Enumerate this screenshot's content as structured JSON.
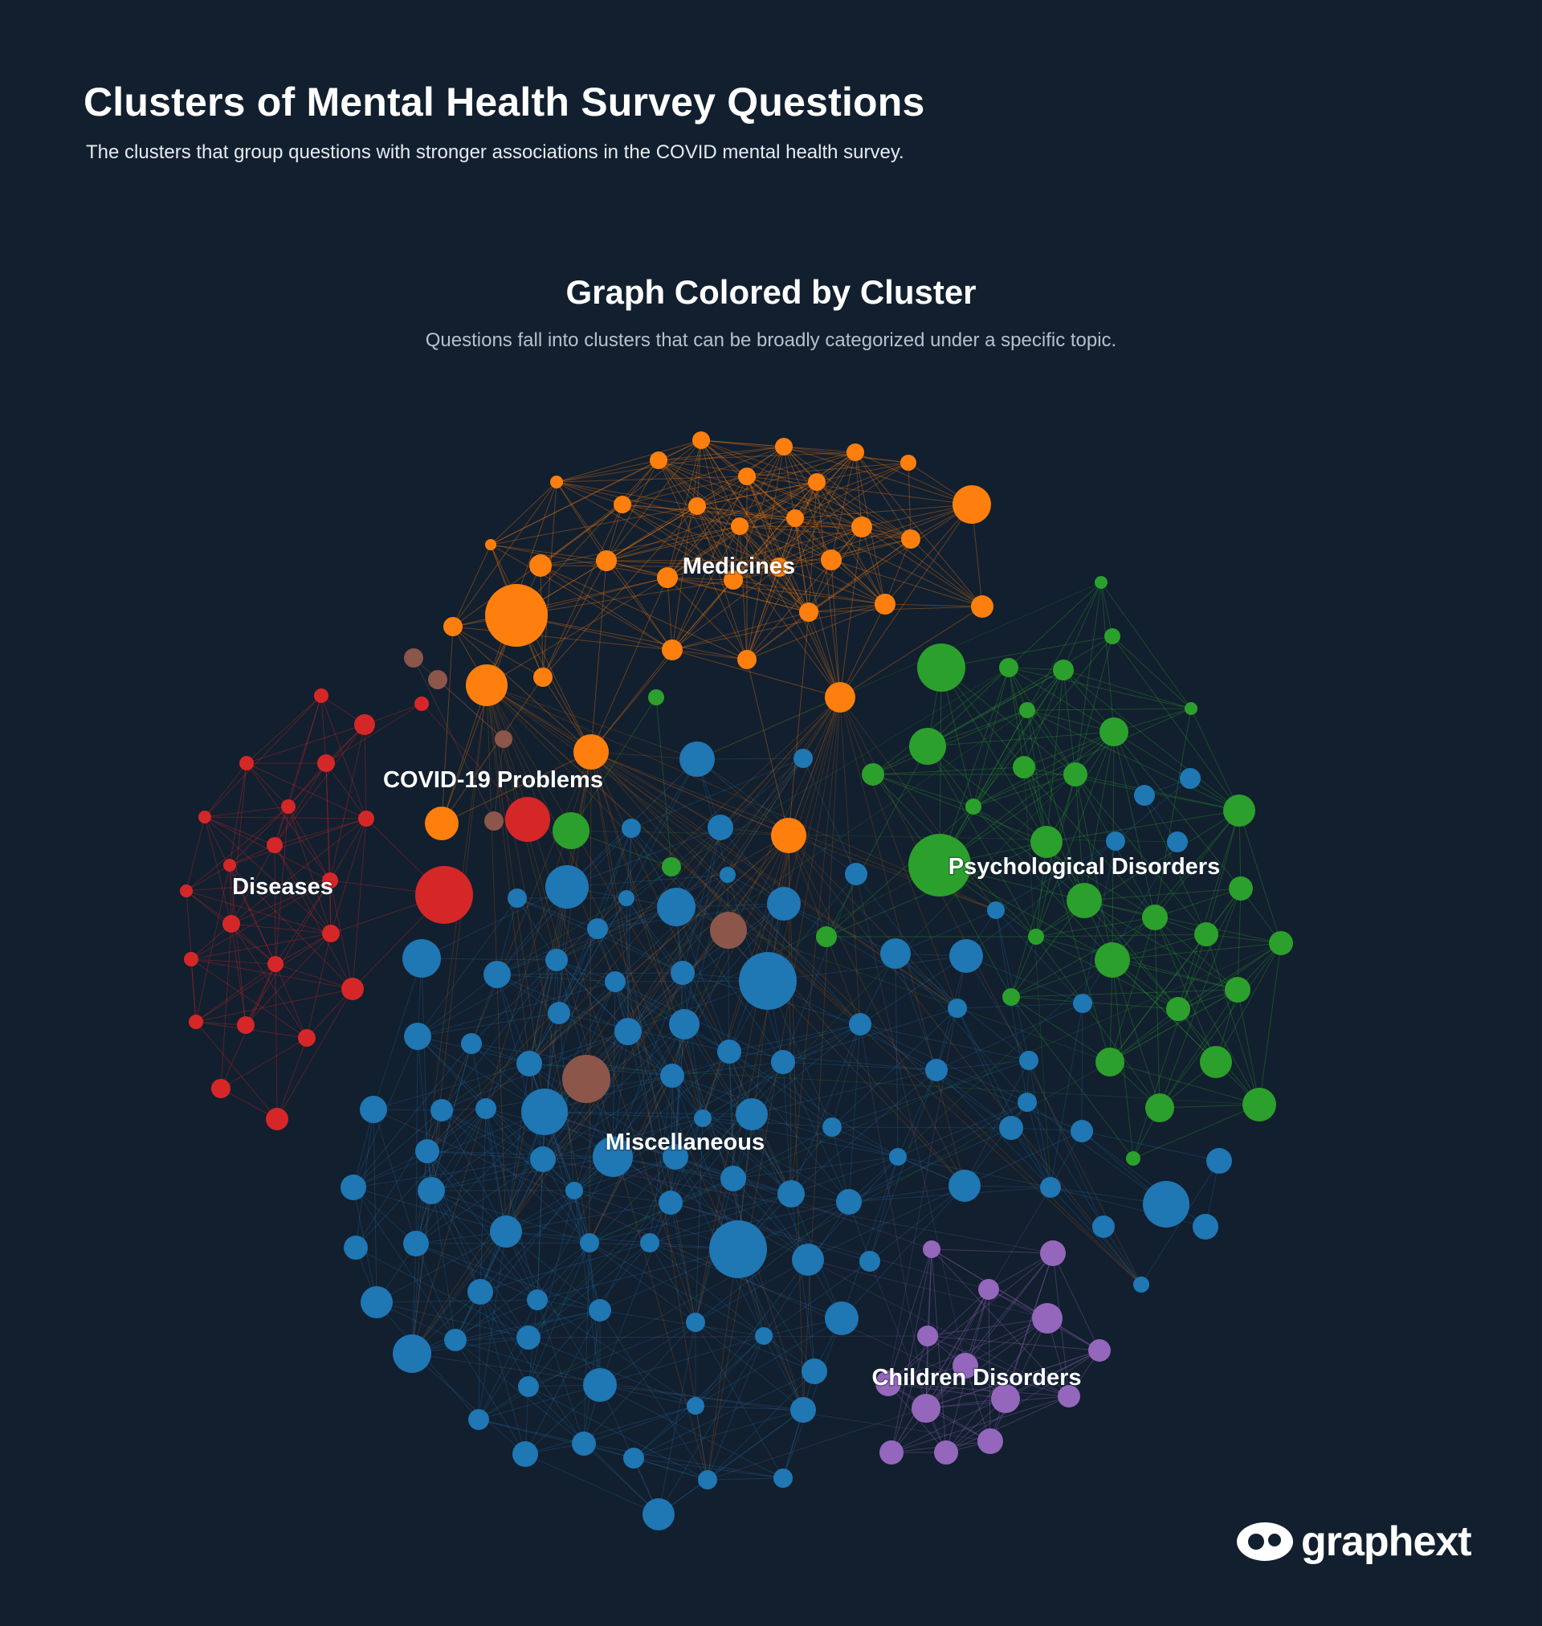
{
  "header": {
    "title": "Clusters of Mental Health Survey Questions",
    "subtitle": "The clusters that group questions with stronger associations in the COVID mental health survey."
  },
  "graph": {
    "title": "Graph Colored by Cluster",
    "subtitle": "Questions fall into clusters that can be broadly categorized under a specific topic.",
    "background": "#121f2e",
    "clusters": [
      {
        "id": "medicines",
        "label": "Medicines",
        "color": "#ff7f0e"
      },
      {
        "id": "psychological",
        "label": "Psychological Disorders",
        "color": "#2ca02c"
      },
      {
        "id": "diseases",
        "label": "Diseases",
        "color": "#d62728"
      },
      {
        "id": "covid",
        "label": "COVID-19 Problems",
        "color": "#8c564b"
      },
      {
        "id": "misc",
        "label": "Miscellaneous",
        "color": "#1f77b4"
      },
      {
        "id": "children",
        "label": "Children Disorders",
        "color": "#9467bd"
      }
    ]
  },
  "logo": {
    "text": "graphext",
    "icon": "graphext-logo-icon"
  }
}
